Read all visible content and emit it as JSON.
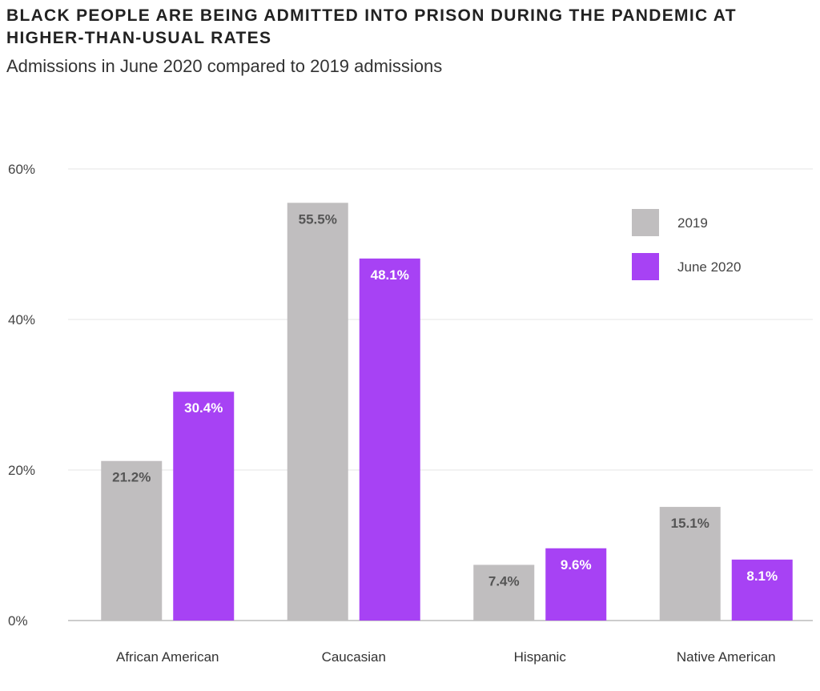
{
  "chart_data": {
    "type": "bar",
    "title": "BLACK PEOPLE ARE BEING ADMITTED INTO PRISON DURING THE PANDEMIC AT HIGHER-THAN-USUAL RATES",
    "subtitle": "Admissions in June 2020 compared to 2019 admissions",
    "categories": [
      "African American",
      "Caucasian",
      "Hispanic",
      "Native American"
    ],
    "series": [
      {
        "name": "2019",
        "values": [
          21.2,
          55.5,
          7.4,
          15.1
        ],
        "labels": [
          "21.2%",
          "55.5%",
          "7.4%",
          "15.1%"
        ],
        "color": "#c0bebf",
        "label_color": "#555555"
      },
      {
        "name": "June 2020",
        "values": [
          30.4,
          48.1,
          9.6,
          8.1
        ],
        "labels": [
          "30.4%",
          "48.1%",
          "9.6%",
          "8.1%"
        ],
        "color": "#a742f4",
        "label_color": "#ffffff"
      }
    ],
    "ylim": [
      0,
      60
    ],
    "yticks": [
      0,
      20,
      40,
      60
    ],
    "ytick_labels": [
      "0%",
      "20%",
      "40%",
      "60%"
    ],
    "grid": true,
    "legend_position": "top-right",
    "xlabel": "",
    "ylabel": ""
  }
}
